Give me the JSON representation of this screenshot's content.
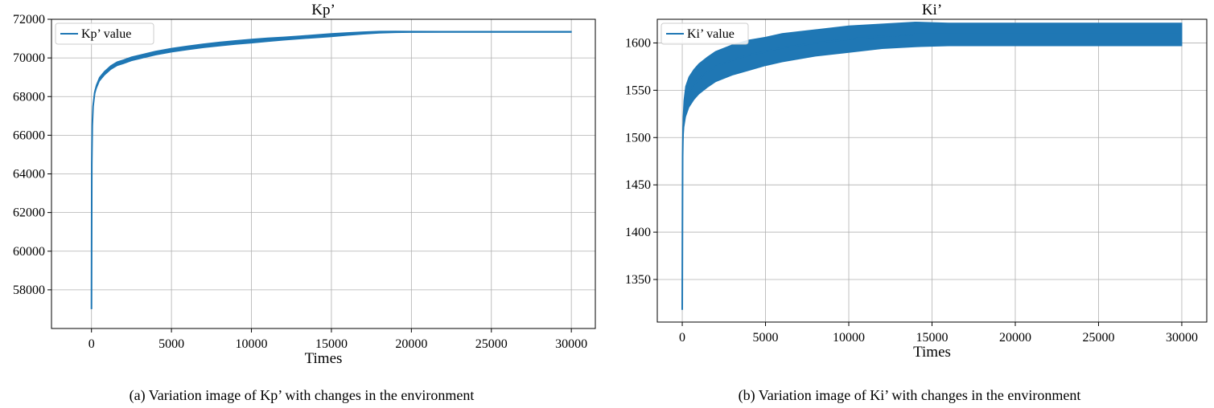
{
  "colors": {
    "series": "#1f77b4",
    "grid": "#b0b0b0",
    "frame": "#000000"
  },
  "chart_data": [
    {
      "type": "line",
      "title": "Kp’",
      "xlabel": "Times",
      "ylabel": "",
      "xlim": [
        -2500,
        31500
      ],
      "ylim": [
        56000,
        72000
      ],
      "xticks": [
        0,
        5000,
        10000,
        15000,
        20000,
        25000,
        30000
      ],
      "yticks": [
        58000,
        60000,
        62000,
        64000,
        66000,
        68000,
        70000,
        72000
      ],
      "grid": true,
      "legend": "top-left",
      "legend_entries": [
        "Kp’ value"
      ],
      "series": [
        {
          "name": "Kp’ value",
          "x": [
            0,
            20,
            50,
            100,
            200,
            300,
            500,
            800,
            1200,
            1600,
            2000,
            2500,
            3000,
            3500,
            4000,
            5000,
            6000,
            7000,
            8000,
            9000,
            10000,
            11000,
            12000,
            13000,
            14000,
            15000,
            16000,
            17000,
            18000,
            19000,
            20000,
            22000,
            24000,
            26000,
            28000,
            30000
          ],
          "y": [
            57000,
            64500,
            66500,
            67500,
            68200,
            68500,
            68900,
            69200,
            69500,
            69700,
            69800,
            69950,
            70050,
            70150,
            70250,
            70400,
            70520,
            70630,
            70720,
            70800,
            70870,
            70940,
            71000,
            71060,
            71120,
            71180,
            71240,
            71290,
            71330,
            71350,
            71350,
            71350,
            71350,
            71350,
            71350,
            71350
          ],
          "band": [
            0,
            0,
            60,
            80,
            90,
            100,
            100,
            100,
            100,
            100,
            100,
            100,
            100,
            100,
            100,
            100,
            100,
            100,
            100,
            100,
            100,
            90,
            80,
            80,
            80,
            80,
            70,
            60,
            50,
            40,
            30,
            25,
            25,
            25,
            25,
            25
          ]
        }
      ],
      "caption": "(a) Variation image of Kp’  with changes in the environment"
    },
    {
      "type": "line",
      "title": "Ki’",
      "xlabel": "Times",
      "ylabel": "",
      "xlim": [
        -1500,
        31500
      ],
      "ylim": [
        1305,
        1625
      ],
      "xticks": [
        0,
        5000,
        10000,
        15000,
        20000,
        25000,
        30000
      ],
      "yticks": [
        1350,
        1400,
        1450,
        1500,
        1550,
        1600
      ],
      "grid": true,
      "legend": "top-left",
      "legend_entries": [
        "Ki’ value"
      ],
      "series": [
        {
          "name": "Ki’ value",
          "x": [
            0,
            20,
            50,
            100,
            200,
            400,
            700,
            1000,
            1500,
            2000,
            3000,
            4000,
            5000,
            6000,
            8000,
            10000,
            12000,
            14000,
            16000,
            18000,
            20000,
            22000,
            24000,
            26000,
            28000,
            30000
          ],
          "y": [
            1318,
            1480,
            1510,
            1525,
            1538,
            1548,
            1556,
            1562,
            1569,
            1575,
            1582,
            1587,
            1591,
            1595,
            1600,
            1604,
            1607,
            1609,
            1609,
            1609,
            1609,
            1609,
            1609,
            1609,
            1609,
            1609
          ],
          "band": [
            0,
            0,
            12,
            14,
            16,
            16,
            16,
            16,
            16,
            16,
            16,
            16,
            15,
            15,
            14,
            14,
            13,
            13,
            12,
            12,
            12,
            12,
            12,
            12,
            12,
            12
          ]
        }
      ],
      "caption": "(b) Variation image of Ki’  with changes in the environment"
    }
  ]
}
